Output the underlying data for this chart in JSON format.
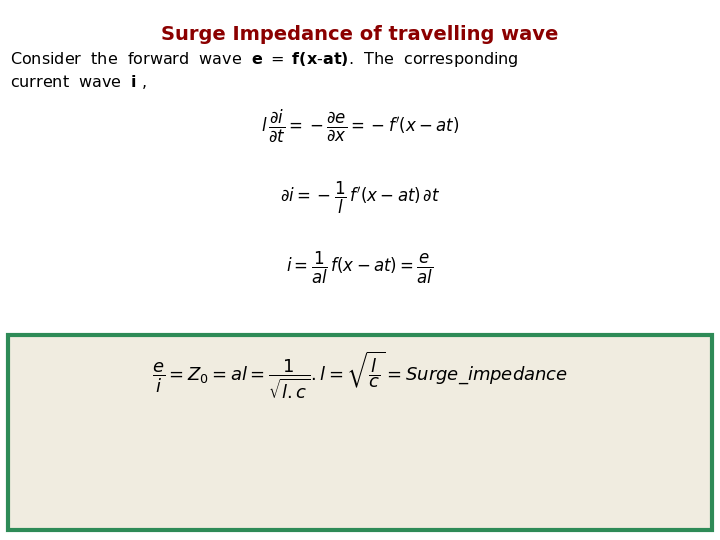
{
  "title": "Surge Impedance of travelling wave",
  "title_color": "#8B0000",
  "title_fontsize": 14,
  "bg_color": "#ffffff",
  "box_color": "#2e8b57",
  "box_bg": "#f0ece0",
  "eq_fontsize": 12,
  "text_fontsize": 11.5
}
